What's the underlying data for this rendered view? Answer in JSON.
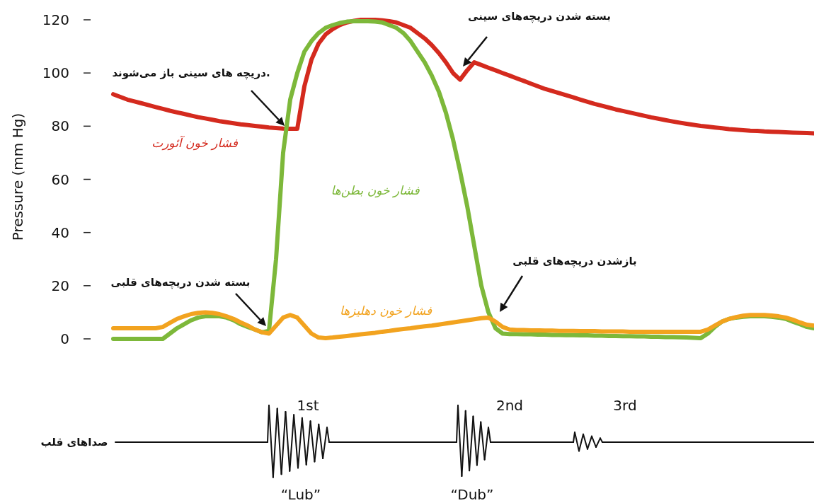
{
  "chart_data": {
    "type": "line",
    "ylabel": "Pressure (mm Hg)",
    "ylim": [
      0,
      120
    ],
    "yticks": [
      0,
      20,
      40,
      60,
      80,
      100,
      120
    ],
    "categories": [
      null,
      null,
      null,
      null,
      null,
      null,
      null,
      null,
      null,
      null,
      null,
      null,
      null,
      null,
      null,
      null,
      null,
      null,
      null,
      null,
      null,
      null,
      null,
      null,
      null,
      null,
      null,
      null,
      null,
      null,
      null,
      null,
      null,
      null,
      null,
      null,
      null,
      null,
      null,
      null,
      null,
      null,
      null,
      null,
      null,
      null,
      null,
      null,
      null,
      null,
      null,
      null,
      null,
      null,
      null,
      null,
      null,
      null,
      null,
      null,
      null,
      null,
      null,
      null,
      null,
      null,
      null,
      null,
      null,
      null,
      null,
      null,
      null,
      null,
      null,
      null,
      null,
      null,
      null,
      null,
      null,
      null,
      null,
      null,
      null,
      null,
      null,
      null,
      null,
      null,
      null,
      null,
      null,
      null,
      null,
      null,
      null,
      null,
      null,
      null
    ],
    "series": [
      {
        "name": "فشار خون آئورت",
        "color": "#d42a1e",
        "values": [
          92,
          91,
          90,
          89.3,
          88.6,
          87.9,
          87.2,
          86.5,
          85.8,
          85.2,
          84.6,
          84,
          83.4,
          82.9,
          82.4,
          81.9,
          81.5,
          81.1,
          80.7,
          80.4,
          80.1,
          79.8,
          79.5,
          79.3,
          79.1,
          79,
          79,
          95,
          105,
          111,
          114.5,
          116.5,
          118,
          119,
          119.6,
          120,
          120,
          120,
          119.8,
          119.5,
          119,
          118,
          117,
          115,
          113,
          110.5,
          107.5,
          104,
          100,
          97.5,
          101,
          104,
          103,
          102,
          101,
          100,
          99,
          98,
          97,
          96,
          95,
          94,
          93.2,
          92.4,
          91.6,
          90.8,
          90,
          89.2,
          88.4,
          87.7,
          87,
          86.3,
          85.7,
          85.1,
          84.5,
          83.9,
          83.3,
          82.8,
          82.3,
          81.8,
          81.3,
          80.9,
          80.5,
          80.1,
          79.8,
          79.5,
          79.2,
          78.9,
          78.7,
          78.5,
          78.3,
          78.2,
          78,
          77.9,
          77.8,
          77.7,
          77.6,
          77.5,
          77.4,
          77.3
        ]
      },
      {
        "name": "فشار خون بطن‌ها",
        "color": "#7db83a",
        "values": [
          0,
          0,
          0,
          0,
          0,
          0,
          0,
          0,
          2,
          4,
          5.5,
          7,
          8,
          8.5,
          8.5,
          8.5,
          8,
          7,
          5.5,
          4.5,
          3.5,
          2.5,
          3,
          30,
          70,
          90,
          100,
          108,
          112,
          115,
          117,
          118,
          118.8,
          119.3,
          119.5,
          119.5,
          119.5,
          119.3,
          119,
          118,
          117,
          115,
          112,
          108,
          104,
          99,
          93,
          85,
          75,
          63,
          50,
          35,
          20,
          10,
          4,
          2,
          1.8,
          1.8,
          1.7,
          1.7,
          1.6,
          1.6,
          1.5,
          1.5,
          1.4,
          1.4,
          1.3,
          1.3,
          1.2,
          1.2,
          1.1,
          1.1,
          1,
          1,
          0.9,
          0.9,
          0.8,
          0.8,
          0.7,
          0.7,
          0.6,
          0.5,
          0.4,
          0.3,
          2,
          4.5,
          6.5,
          7.5,
          8,
          8.3,
          8.5,
          8.5,
          8.5,
          8.3,
          8,
          7.5,
          6.5,
          5.5,
          4.5,
          4
        ]
      },
      {
        "name": "فشار خون دهلیزها",
        "color": "#f2a31f",
        "values": [
          4,
          4,
          4,
          4,
          4,
          4,
          4,
          4.5,
          6,
          7.5,
          8.5,
          9.3,
          9.8,
          10,
          9.8,
          9.3,
          8.5,
          7.5,
          6.2,
          5,
          3.5,
          2.5,
          2,
          5,
          8,
          9,
          8,
          5,
          2,
          0.5,
          0.3,
          0.5,
          0.8,
          1.1,
          1.4,
          1.7,
          2,
          2.3,
          2.7,
          3,
          3.4,
          3.7,
          4,
          4.4,
          4.7,
          5,
          5.4,
          5.8,
          6.2,
          6.6,
          7,
          7.4,
          7.8,
          8,
          6.5,
          4.5,
          3.5,
          3.3,
          3.3,
          3.2,
          3.2,
          3.1,
          3.1,
          3,
          3,
          3,
          2.9,
          2.9,
          2.9,
          2.8,
          2.8,
          2.8,
          2.8,
          2.7,
          2.7,
          2.7,
          2.7,
          2.7,
          2.7,
          2.7,
          2.7,
          2.7,
          2.7,
          2.7,
          3.5,
          5,
          6.5,
          7.5,
          8.2,
          8.7,
          9,
          9,
          9,
          8.8,
          8.5,
          8,
          7.2,
          6.2,
          5.3,
          5
        ]
      }
    ],
    "annotations": [
      "دریچه های سینی باز می‌شوند.",
      "بسته شدن دریچه‌های سینی",
      "بسته شدن دریچه‌های قلبی",
      "بازشدن دریچه‌های قلبی",
      "1st",
      "2nd",
      "3rd",
      "“Lub”",
      "“Dub”",
      "صداهای قلب"
    ]
  }
}
